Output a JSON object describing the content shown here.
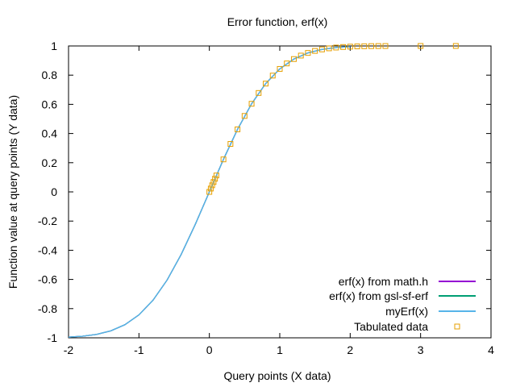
{
  "chart_data": {
    "type": "line",
    "title": "Error function, erf(x)",
    "xlabel": "Query points (X data)",
    "ylabel": "Function value at query points (Y data)",
    "xlim": [
      -2,
      4
    ],
    "ylim": [
      -1,
      1
    ],
    "xticks": [
      "-2",
      "-1",
      "0",
      "1",
      "2",
      "3",
      "4"
    ],
    "yticks": [
      "1",
      "0.8",
      "0.6",
      "0.4",
      "0.2",
      "0",
      "-0.2",
      "-0.4",
      "-0.6",
      "-0.8",
      "-1"
    ],
    "grid": false,
    "legend_position": "bottom-right",
    "colors": {
      "math_h": "#9400d3",
      "gsl": "#009e73",
      "myerf": "#56b4e9",
      "tabulated": "#e69f00"
    },
    "series": [
      {
        "name": "erf(x) from math.h",
        "kind": "line",
        "color_key": "math_h",
        "x": [
          -2,
          -1.8,
          -1.6,
          -1.4,
          -1.2,
          -1,
          -0.8,
          -0.6,
          -0.4,
          -0.2,
          0,
          0.2,
          0.4,
          0.6,
          0.8,
          1,
          1.2,
          1.4,
          1.6,
          1.8,
          2
        ],
        "y": [
          -0.9953,
          -0.9891,
          -0.9763,
          -0.9523,
          -0.9103,
          -0.8427,
          -0.7421,
          -0.6039,
          -0.4284,
          -0.2227,
          0,
          0.2227,
          0.4284,
          0.6039,
          0.7421,
          0.8427,
          0.9103,
          0.9523,
          0.9763,
          0.9891,
          0.9953
        ]
      },
      {
        "name": "erf(x) from gsl-sf-erf",
        "kind": "line",
        "color_key": "gsl",
        "x": [
          -2,
          -1.8,
          -1.6,
          -1.4,
          -1.2,
          -1,
          -0.8,
          -0.6,
          -0.4,
          -0.2,
          0,
          0.2,
          0.4,
          0.6,
          0.8,
          1,
          1.2,
          1.4,
          1.6,
          1.8,
          2
        ],
        "y": [
          -0.9953,
          -0.9891,
          -0.9763,
          -0.9523,
          -0.9103,
          -0.8427,
          -0.7421,
          -0.6039,
          -0.4284,
          -0.2227,
          0,
          0.2227,
          0.4284,
          0.6039,
          0.7421,
          0.8427,
          0.9103,
          0.9523,
          0.9763,
          0.9891,
          0.9953
        ]
      },
      {
        "name": "myErf(x)",
        "kind": "line",
        "color_key": "myerf",
        "x": [
          -2,
          -1.8,
          -1.6,
          -1.4,
          -1.2,
          -1,
          -0.8,
          -0.6,
          -0.4,
          -0.2,
          0,
          0.2,
          0.4,
          0.6,
          0.8,
          1,
          1.2,
          1.4,
          1.6,
          1.8,
          2
        ],
        "y": [
          -0.9953,
          -0.9891,
          -0.9763,
          -0.9523,
          -0.9103,
          -0.8427,
          -0.7421,
          -0.6039,
          -0.4284,
          -0.2227,
          0,
          0.2227,
          0.4284,
          0.6039,
          0.7421,
          0.8427,
          0.9103,
          0.9523,
          0.9763,
          0.9891,
          0.9953
        ]
      },
      {
        "name": "Tabulated data",
        "kind": "points",
        "color_key": "tabulated",
        "x": [
          0,
          0.02,
          0.04,
          0.06,
          0.08,
          0.1,
          0.2,
          0.3,
          0.4,
          0.5,
          0.6,
          0.7,
          0.8,
          0.9,
          1.0,
          1.1,
          1.2,
          1.3,
          1.4,
          1.5,
          1.6,
          1.7,
          1.8,
          1.9,
          2.0,
          2.1,
          2.2,
          2.3,
          2.4,
          2.5,
          3.0,
          3.5
        ],
        "y": [
          0,
          0.0226,
          0.0451,
          0.0676,
          0.0901,
          0.1125,
          0.2227,
          0.3286,
          0.4284,
          0.5205,
          0.6039,
          0.6778,
          0.7421,
          0.7969,
          0.8427,
          0.8802,
          0.9103,
          0.934,
          0.9523,
          0.9661,
          0.9763,
          0.9838,
          0.9891,
          0.9928,
          0.9953,
          0.997,
          0.9981,
          0.9989,
          0.9993,
          0.9996,
          1.0,
          1.0
        ]
      }
    ]
  }
}
